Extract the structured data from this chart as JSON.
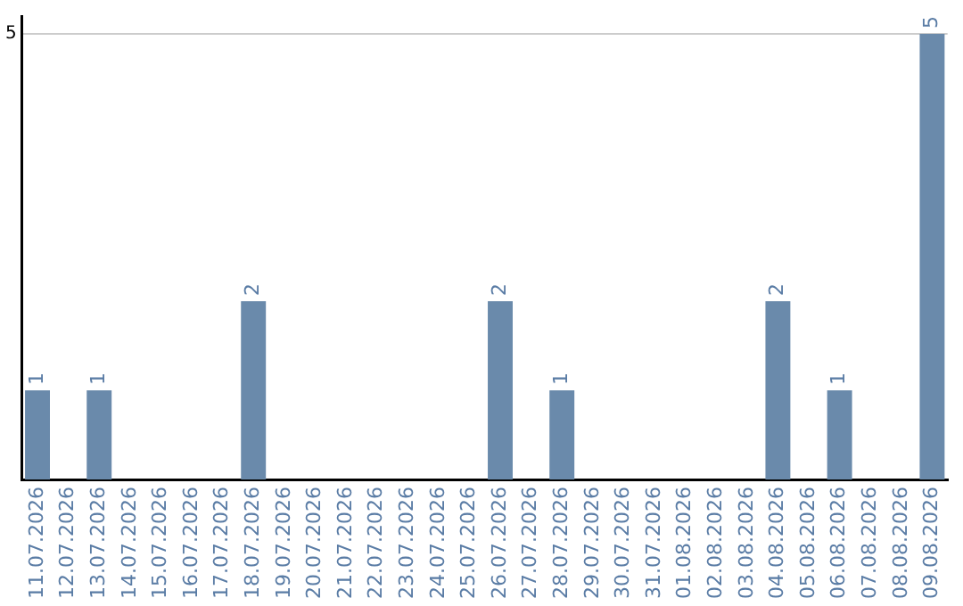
{
  "chart_data": {
    "type": "bar",
    "categories": [
      "11.07.2026",
      "12.07.2026",
      "13.07.2026",
      "14.07.2026",
      "15.07.2026",
      "16.07.2026",
      "17.07.2026",
      "18.07.2026",
      "19.07.2026",
      "20.07.2026",
      "21.07.2026",
      "22.07.2026",
      "23.07.2026",
      "24.07.2026",
      "25.07.2026",
      "26.07.2026",
      "27.07.2026",
      "28.07.2026",
      "29.07.2026",
      "30.07.2026",
      "31.07.2026",
      "01.08.2026",
      "02.08.2026",
      "03.08.2026",
      "04.08.2026",
      "05.08.2026",
      "06.08.2026",
      "07.08.2026",
      "08.08.2026",
      "09.08.2026"
    ],
    "values": [
      1,
      0,
      1,
      0,
      0,
      0,
      0,
      2,
      0,
      0,
      0,
      0,
      0,
      0,
      0,
      2,
      0,
      1,
      0,
      0,
      0,
      0,
      0,
      0,
      2,
      0,
      1,
      0,
      0,
      5
    ],
    "value_labels": [
      "1",
      null,
      "1",
      null,
      null,
      null,
      null,
      "2",
      null,
      null,
      null,
      null,
      null,
      null,
      null,
      "2",
      null,
      "1",
      null,
      null,
      null,
      null,
      null,
      null,
      "2",
      null,
      "1",
      null,
      null,
      "5"
    ],
    "color": "#6a8aab",
    "ylim": [
      0,
      5.2
    ],
    "yticks": [
      5
    ],
    "grid": "y",
    "legend": false
  }
}
